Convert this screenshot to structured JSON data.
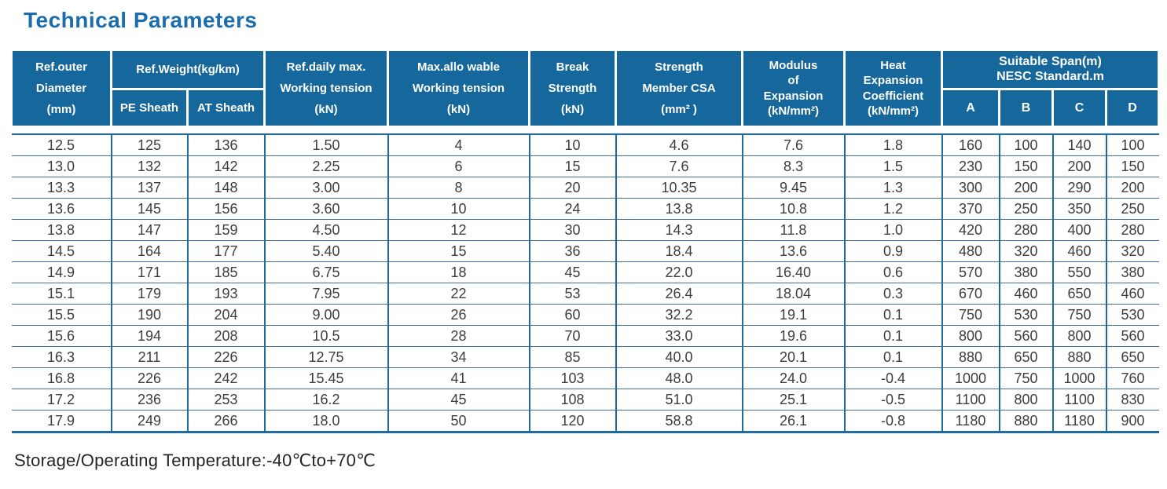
{
  "title": "Technical Parameters",
  "footer_note": "Storage/Operating Temperature:-40℃to+70℃",
  "colors": {
    "header_bg": "#16689c",
    "title_text": "#1c6dad",
    "body_text": "#3d3d3d",
    "grid_vertical": "#1e6b9e",
    "grid_horizontal": "#3d6f99"
  },
  "table": {
    "header": {
      "ref_outer_diameter": "Ref.outer\nDiameter\n(mm)",
      "ref_weight": "Ref.Weight(kg/km)",
      "pe_sheath": "PE Sheath",
      "at_sheath": "AT Sheath",
      "daily_max_tension": "Ref.daily max.\nWorking tension\n(kN)",
      "max_allowable_tension": "Max.allo wable\nWorking tension\n(kN)",
      "break_strength": "Break\nStrength\n(kN)",
      "strength_member_csa": "Strength\nMember CSA\n(mm² )",
      "modulus_of_expansion": "Modulus\nof\nExpansion\n(kN/mm²)",
      "heat_expansion_coefficient": "Heat\nExpansion\nCoefficient\n(kN/mm²)",
      "suitable_span": "Suitable Span(m)\nNESC Standard.m",
      "span_a": "A",
      "span_b": "B",
      "span_c": "C",
      "span_d": "D"
    },
    "rows": [
      [
        "12.5",
        "125",
        "136",
        "1.50",
        "4",
        "10",
        "4.6",
        "7.6",
        "1.8",
        "160",
        "100",
        "140",
        "100"
      ],
      [
        "13.0",
        "132",
        "142",
        "2.25",
        "6",
        "15",
        "7.6",
        "8.3",
        "1.5",
        "230",
        "150",
        "200",
        "150"
      ],
      [
        "13.3",
        "137",
        "148",
        "3.00",
        "8",
        "20",
        "10.35",
        "9.45",
        "1.3",
        "300",
        "200",
        "290",
        "200"
      ],
      [
        "13.6",
        "145",
        "156",
        "3.60",
        "10",
        "24",
        "13.8",
        "10.8",
        "1.2",
        "370",
        "250",
        "350",
        "250"
      ],
      [
        "13.8",
        "147",
        "159",
        "4.50",
        "12",
        "30",
        "14.3",
        "11.8",
        "1.0",
        "420",
        "280",
        "400",
        "280"
      ],
      [
        "14.5",
        "164",
        "177",
        "5.40",
        "15",
        "36",
        "18.4",
        "13.6",
        "0.9",
        "480",
        "320",
        "460",
        "320"
      ],
      [
        "14.9",
        "171",
        "185",
        "6.75",
        "18",
        "45",
        "22.0",
        "16.40",
        "0.6",
        "570",
        "380",
        "550",
        "380"
      ],
      [
        "15.1",
        "179",
        "193",
        "7.95",
        "22",
        "53",
        "26.4",
        "18.04",
        "0.3",
        "670",
        "460",
        "650",
        "460"
      ],
      [
        "15.5",
        "190",
        "204",
        "9.00",
        "26",
        "60",
        "32.2",
        "19.1",
        "0.1",
        "750",
        "530",
        "750",
        "530"
      ],
      [
        "15.6",
        "194",
        "208",
        "10.5",
        "28",
        "70",
        "33.0",
        "19.6",
        "0.1",
        "800",
        "560",
        "800",
        "560"
      ],
      [
        "16.3",
        "211",
        "226",
        "12.75",
        "34",
        "85",
        "40.0",
        "20.1",
        "0.1",
        "880",
        "650",
        "880",
        "650"
      ],
      [
        "16.8",
        "226",
        "242",
        "15.45",
        "41",
        "103",
        "48.0",
        "24.0",
        "-0.4",
        "1000",
        "750",
        "1000",
        "760"
      ],
      [
        "17.2",
        "236",
        "253",
        "16.2",
        "45",
        "108",
        "51.0",
        "25.1",
        "-0.5",
        "1100",
        "800",
        "1100",
        "830"
      ],
      [
        "17.9",
        "249",
        "266",
        "18.0",
        "50",
        "120",
        "58.8",
        "26.1",
        "-0.8",
        "1180",
        "880",
        "1180",
        "900"
      ]
    ]
  }
}
